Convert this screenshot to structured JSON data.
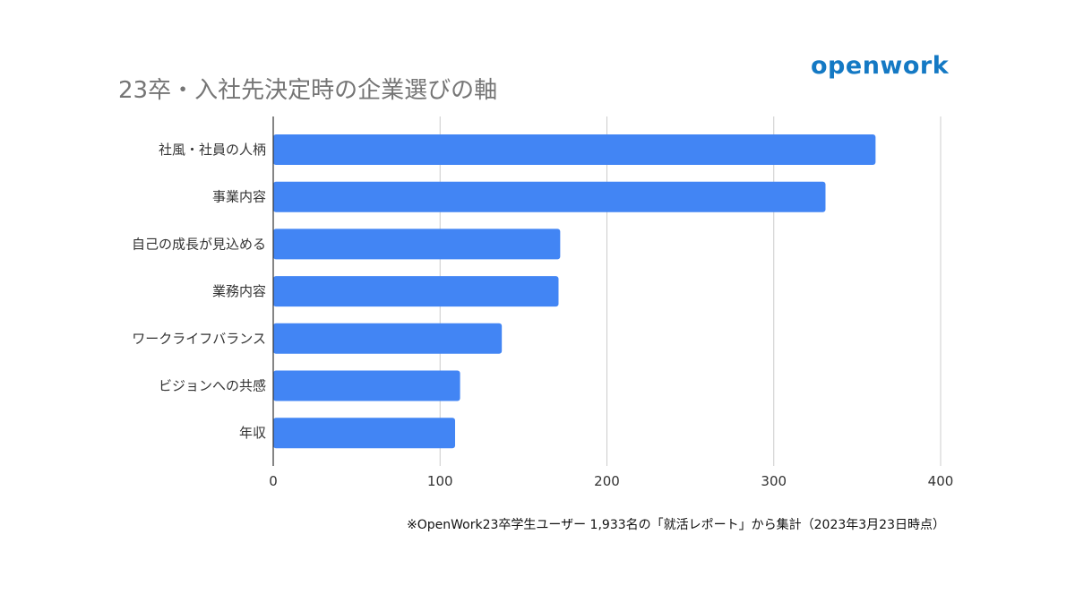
{
  "title": "23卒・入社先決定時の企業選びの軸",
  "logo_text": "openwork",
  "footnote": "※OpenWork23卒学生ユーザー 1,933名の「就活レポート」から集計（2023年3月23日時点）",
  "colors": {
    "bar": "#4285f4",
    "grid": "#cccccc",
    "axis": "#333333",
    "logo": "#1479c4"
  },
  "chart_data": {
    "type": "bar",
    "orientation": "horizontal",
    "title": "23卒・入社先決定時の企業選びの軸",
    "categories": [
      "社風・社員の人柄",
      "事業内容",
      "自己の成長が見込める",
      "業務内容",
      "ワークライフバランス",
      "ビジョンへの共感",
      "年収"
    ],
    "values": [
      361,
      331,
      172,
      171,
      137,
      112,
      109
    ],
    "xlim": [
      0,
      400
    ],
    "xticks": [
      "0",
      "100",
      "200",
      "300",
      "400"
    ],
    "grid": true,
    "legend": "none",
    "xlabel": "",
    "ylabel": ""
  }
}
